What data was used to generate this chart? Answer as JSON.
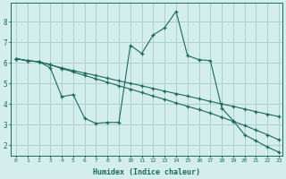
{
  "xlabel": "Humidex (Indice chaleur)",
  "bg_color": "#d4eded",
  "grid_color": "#aed0d0",
  "line_color": "#1a6b5a",
  "xlim": [
    -0.5,
    23.3
  ],
  "ylim": [
    1.5,
    8.9
  ],
  "xticks": [
    0,
    1,
    2,
    3,
    4,
    5,
    6,
    7,
    8,
    9,
    10,
    11,
    12,
    13,
    14,
    15,
    16,
    17,
    18,
    19,
    20,
    21,
    22,
    23
  ],
  "yticks": [
    2,
    3,
    4,
    5,
    6,
    7,
    8
  ],
  "line1_x": [
    0,
    1,
    2,
    3,
    4,
    5,
    6,
    7,
    8,
    9,
    10,
    11,
    12,
    13,
    14,
    15,
    16,
    17,
    18,
    19,
    20,
    21,
    22,
    23
  ],
  "line1_y": [
    6.2,
    6.1,
    6.05,
    5.9,
    5.75,
    5.62,
    5.5,
    5.38,
    5.25,
    5.12,
    5.0,
    4.88,
    4.75,
    4.62,
    4.5,
    4.38,
    4.25,
    4.12,
    4.0,
    3.88,
    3.75,
    3.62,
    3.5,
    3.38
  ],
  "line2_x": [
    0,
    1,
    2,
    3,
    4,
    5,
    6,
    7,
    8,
    9,
    10,
    11,
    12,
    13,
    14,
    15,
    16,
    17,
    18,
    19,
    20,
    21,
    22,
    23
  ],
  "line2_y": [
    6.2,
    6.1,
    6.05,
    5.9,
    5.72,
    5.55,
    5.38,
    5.22,
    5.05,
    4.88,
    4.72,
    4.55,
    4.38,
    4.22,
    4.05,
    3.88,
    3.72,
    3.55,
    3.35,
    3.15,
    2.95,
    2.72,
    2.5,
    2.25
  ],
  "line3_x": [
    0,
    1,
    2,
    3,
    4,
    5,
    6,
    7,
    8,
    9,
    10,
    11,
    12,
    13,
    14,
    15,
    16,
    17,
    18,
    19,
    20,
    21,
    22,
    23
  ],
  "line3_y": [
    6.2,
    6.1,
    6.05,
    5.75,
    4.35,
    4.45,
    3.3,
    3.05,
    3.1,
    3.1,
    6.85,
    6.45,
    7.35,
    7.7,
    8.5,
    6.35,
    6.15,
    6.1,
    3.8,
    3.18,
    2.5,
    2.2,
    1.9,
    1.65
  ]
}
